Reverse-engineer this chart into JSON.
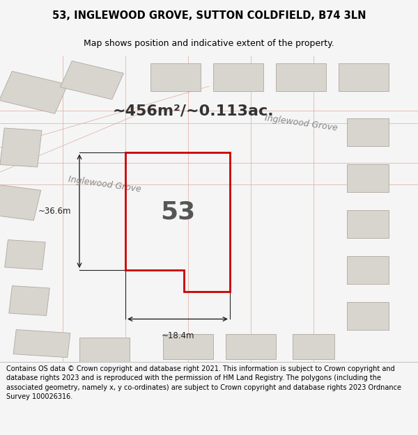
{
  "title_line1": "53, INGLEWOOD GROVE, SUTTON COLDFIELD, B74 3LN",
  "title_line2": "Map shows position and indicative extent of the property.",
  "area_text": "~456m²/~0.113ac.",
  "street_label": "Inglewood Grove",
  "street_label2": "Inglewood Grove",
  "plot_number": "53",
  "dim_width": "~18.4m",
  "dim_height": "~36.6m",
  "footer_text": "Contains OS data © Crown copyright and database right 2021. This information is subject to Crown copyright and database rights 2023 and is reproduced with the permission of HM Land Registry. The polygons (including the associated geometry, namely x, y co-ordinates) are subject to Crown copyright and database rights 2023 Ordnance Survey 100026316.",
  "bg_color": "#e8e8e8",
  "map_bg": "#f0eeec",
  "plot_color": "#cc0000",
  "plot_fill": "none",
  "building_fill": "#d8d4ce",
  "building_edge": "#c0b8b0",
  "road_line_color": "#e8c8c0",
  "title_fontsize": 10,
  "footer_fontsize": 7.5
}
